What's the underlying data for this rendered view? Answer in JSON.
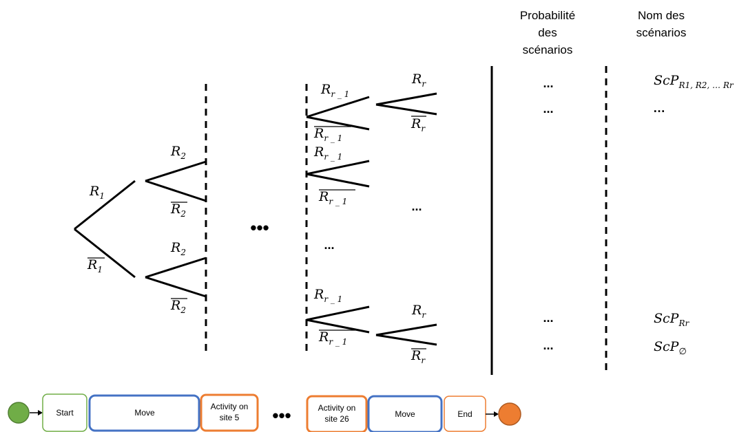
{
  "headers": {
    "probability": [
      "Probabilité",
      "des",
      "scénarios"
    ],
    "names": [
      "Nom des",
      "scénarios"
    ]
  },
  "tree": {
    "r1": "R",
    "r1_sub": "1",
    "r2": "R",
    "r2_sub": "2",
    "rr1": "R",
    "rr1_sub": "r _ 1",
    "rr": "R",
    "rr_sub": "r"
  },
  "ellipsis": "...",
  "big_ellipsis": "•••",
  "scenario_names": [
    {
      "base": "ScP",
      "sub": "R1, R2, … Rr"
    },
    {
      "base": "…",
      "sub": ""
    },
    {
      "base": "ScP",
      "sub": "Rr"
    },
    {
      "base": "ScP",
      "sub": "∅"
    }
  ],
  "flow": {
    "start": "Start",
    "move1": "Move",
    "activity5": [
      "Activity on",
      "site 5"
    ],
    "ellipsis": "•••",
    "activity26": [
      "Activity on",
      "site 26"
    ],
    "move2": "Move",
    "end": "End"
  },
  "colors": {
    "start_node": "#70ad47",
    "end_node": "#ed7d31",
    "start_box": "#70ad47",
    "move_box": "#4472c4",
    "activity_box": "#ed7d31",
    "end_box": "#ed7d31"
  }
}
